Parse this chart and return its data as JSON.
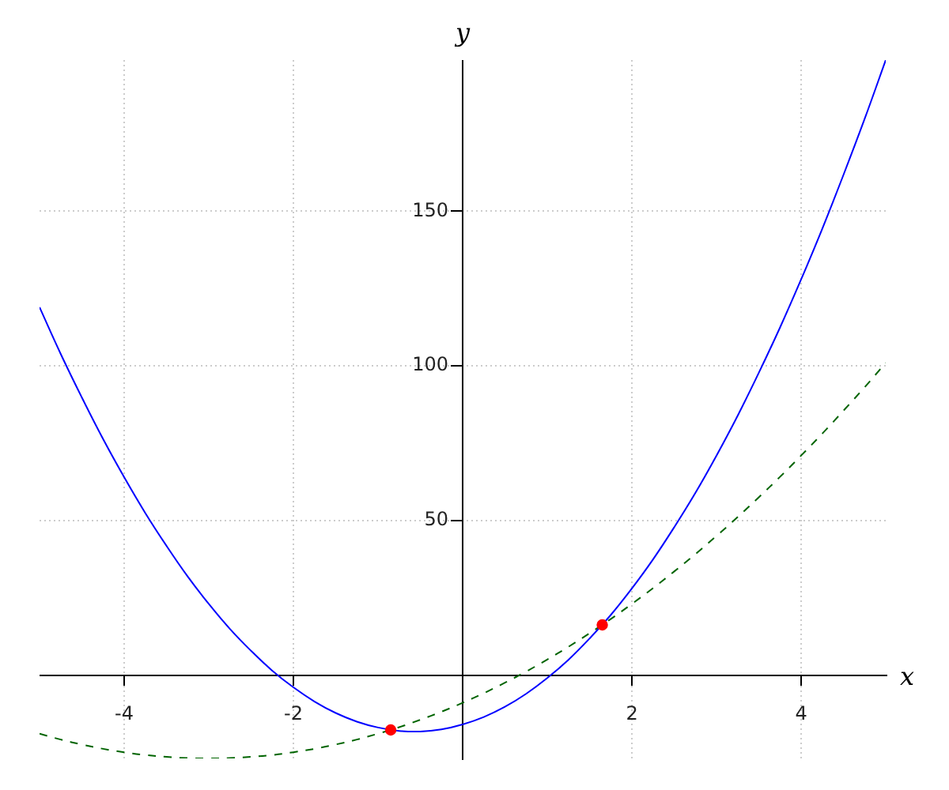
{
  "chart_data": {
    "type": "line",
    "xlabel": "x",
    "ylabel": "y",
    "xlim": [
      -5,
      5
    ],
    "ylim": [
      -27,
      199
    ],
    "xticks": [
      -4,
      -2,
      2,
      4
    ],
    "yticks": [
      50,
      100,
      150
    ],
    "grid": true,
    "x": [
      -5,
      -4.75,
      -4.5,
      -4.25,
      -4,
      -3.75,
      -3.5,
      -3.25,
      -3,
      -2.75,
      -2.5,
      -2.25,
      -2,
      -1.75,
      -1.5,
      -1.25,
      -1,
      -0.75,
      -0.5,
      -0.25,
      0,
      0.25,
      0.5,
      0.75,
      1,
      1.25,
      1.5,
      1.75,
      2,
      2.25,
      2.5,
      2.75,
      3,
      3.25,
      3.5,
      3.75,
      4,
      4.25,
      4.5,
      4.75,
      5
    ],
    "series": [
      {
        "color": "#0000ff",
        "line_style": "solid",
        "values": [
          119,
          103.9,
          89.8,
          76.4,
          64,
          52.4,
          41.8,
          31.9,
          23,
          14.9,
          7.8,
          1.4,
          -4,
          -8.6,
          -12.3,
          -15.1,
          -17,
          -18.1,
          -18.3,
          -17.6,
          -16,
          -13.6,
          -10.3,
          -6.1,
          -1,
          4.9,
          11.8,
          19.4,
          28,
          37.4,
          47.8,
          58.9,
          71,
          83.9,
          97.8,
          112.4,
          128,
          144.4,
          161.8,
          179.9,
          199
        ]
      },
      {
        "color": "#006400",
        "line_style": "dashed",
        "values": [
          -19,
          -20.9,
          -22.5,
          -23.9,
          -25,
          -25.9,
          -26.5,
          -26.9,
          -27,
          -26.9,
          -26.5,
          -25.9,
          -25,
          -23.9,
          -22.5,
          -20.9,
          -19,
          -16.9,
          -14.5,
          -11.9,
          -9,
          -5.9,
          -2.5,
          1.1,
          5,
          9.1,
          13.5,
          18.1,
          23,
          28.1,
          33.5,
          39.1,
          45,
          51.1,
          57.5,
          64.1,
          71,
          78.1,
          85.5,
          93.1,
          101
        ]
      },
      {
        "type": "scatter",
        "color": "#ff0000",
        "marker": "circle",
        "x": [
          -0.85,
          1.65
        ],
        "values": [
          -17.8,
          16.2
        ]
      }
    ]
  }
}
